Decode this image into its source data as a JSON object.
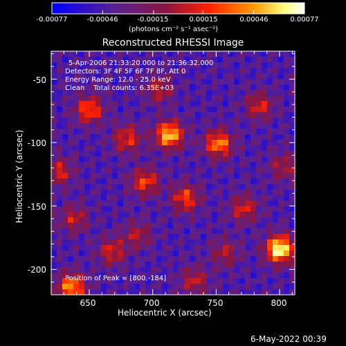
{
  "colorbar": {
    "ticks": [
      "-0.00077",
      "-0.00046",
      "-0.00015",
      "0.00015",
      "0.00046",
      "0.00077"
    ],
    "tick_values": [
      -0.00077,
      -0.00046,
      -0.00015,
      0.00015,
      0.00046,
      0.00077
    ],
    "unit_label": "(photons cm⁻² s⁻¹ asec⁻²)"
  },
  "annotations": {
    "time": "5-Apr-2006 21:33:20.000 to 21:36:32.000",
    "detectors": "Detectors: 3F 4F 5F 6F 7F 8F, Att 0",
    "energy": "Energy Range: 12.0 - 25.0 keV",
    "clean": "Clean    Total counts: 6.35E+03",
    "peak": "Position of Peak = [800,-184]"
  },
  "footer_date": "6-May-2022 00:39",
  "chart_data": {
    "type": "heatmap",
    "title": "Reconstructed RHESSI Image",
    "xlabel": "Heliocentric X (arcsec)",
    "ylabel": "Heliocentric Y (arcsec)",
    "xlim": [
      620,
      812
    ],
    "ylim": [
      -220,
      -28
    ],
    "xticks": [
      650,
      700,
      750,
      800
    ],
    "yticks": [
      -50,
      -100,
      -150,
      -200
    ],
    "zlim": [
      -0.00077,
      0.00077
    ],
    "peak": [
      800,
      -184
    ],
    "colormap": [
      "#0000ff",
      "#5a2090",
      "#8a1540",
      "#ff2000",
      "#ff9a00",
      "#ffff80",
      "#ffffff"
    ],
    "sources": [
      {
        "x": 800,
        "y": -184,
        "amp": 1.0
      },
      {
        "x": 713,
        "y": -94,
        "amp": 0.85
      },
      {
        "x": 752,
        "y": -101,
        "amp": 0.7
      },
      {
        "x": 636,
        "y": -214,
        "amp": 0.75
      },
      {
        "x": 650,
        "y": -74,
        "amp": 0.6
      },
      {
        "x": 694,
        "y": -131,
        "amp": 0.55
      },
      {
        "x": 680,
        "y": -97,
        "amp": 0.5
      },
      {
        "x": 726,
        "y": -144,
        "amp": 0.55
      },
      {
        "x": 772,
        "y": -152,
        "amp": 0.45
      },
      {
        "x": 668,
        "y": -186,
        "amp": 0.45
      },
      {
        "x": 733,
        "y": -209,
        "amp": 0.4
      },
      {
        "x": 784,
        "y": -71,
        "amp": 0.45
      },
      {
        "x": 626,
        "y": -123,
        "amp": 0.45
      },
      {
        "x": 688,
        "y": -173,
        "amp": 0.35
      },
      {
        "x": 757,
        "y": -187,
        "amp": 0.35
      },
      {
        "x": 705,
        "y": -58,
        "amp": 0.4
      },
      {
        "x": 803,
        "y": -119,
        "amp": 0.35
      },
      {
        "x": 638,
        "y": -160,
        "amp": 0.4
      }
    ]
  }
}
